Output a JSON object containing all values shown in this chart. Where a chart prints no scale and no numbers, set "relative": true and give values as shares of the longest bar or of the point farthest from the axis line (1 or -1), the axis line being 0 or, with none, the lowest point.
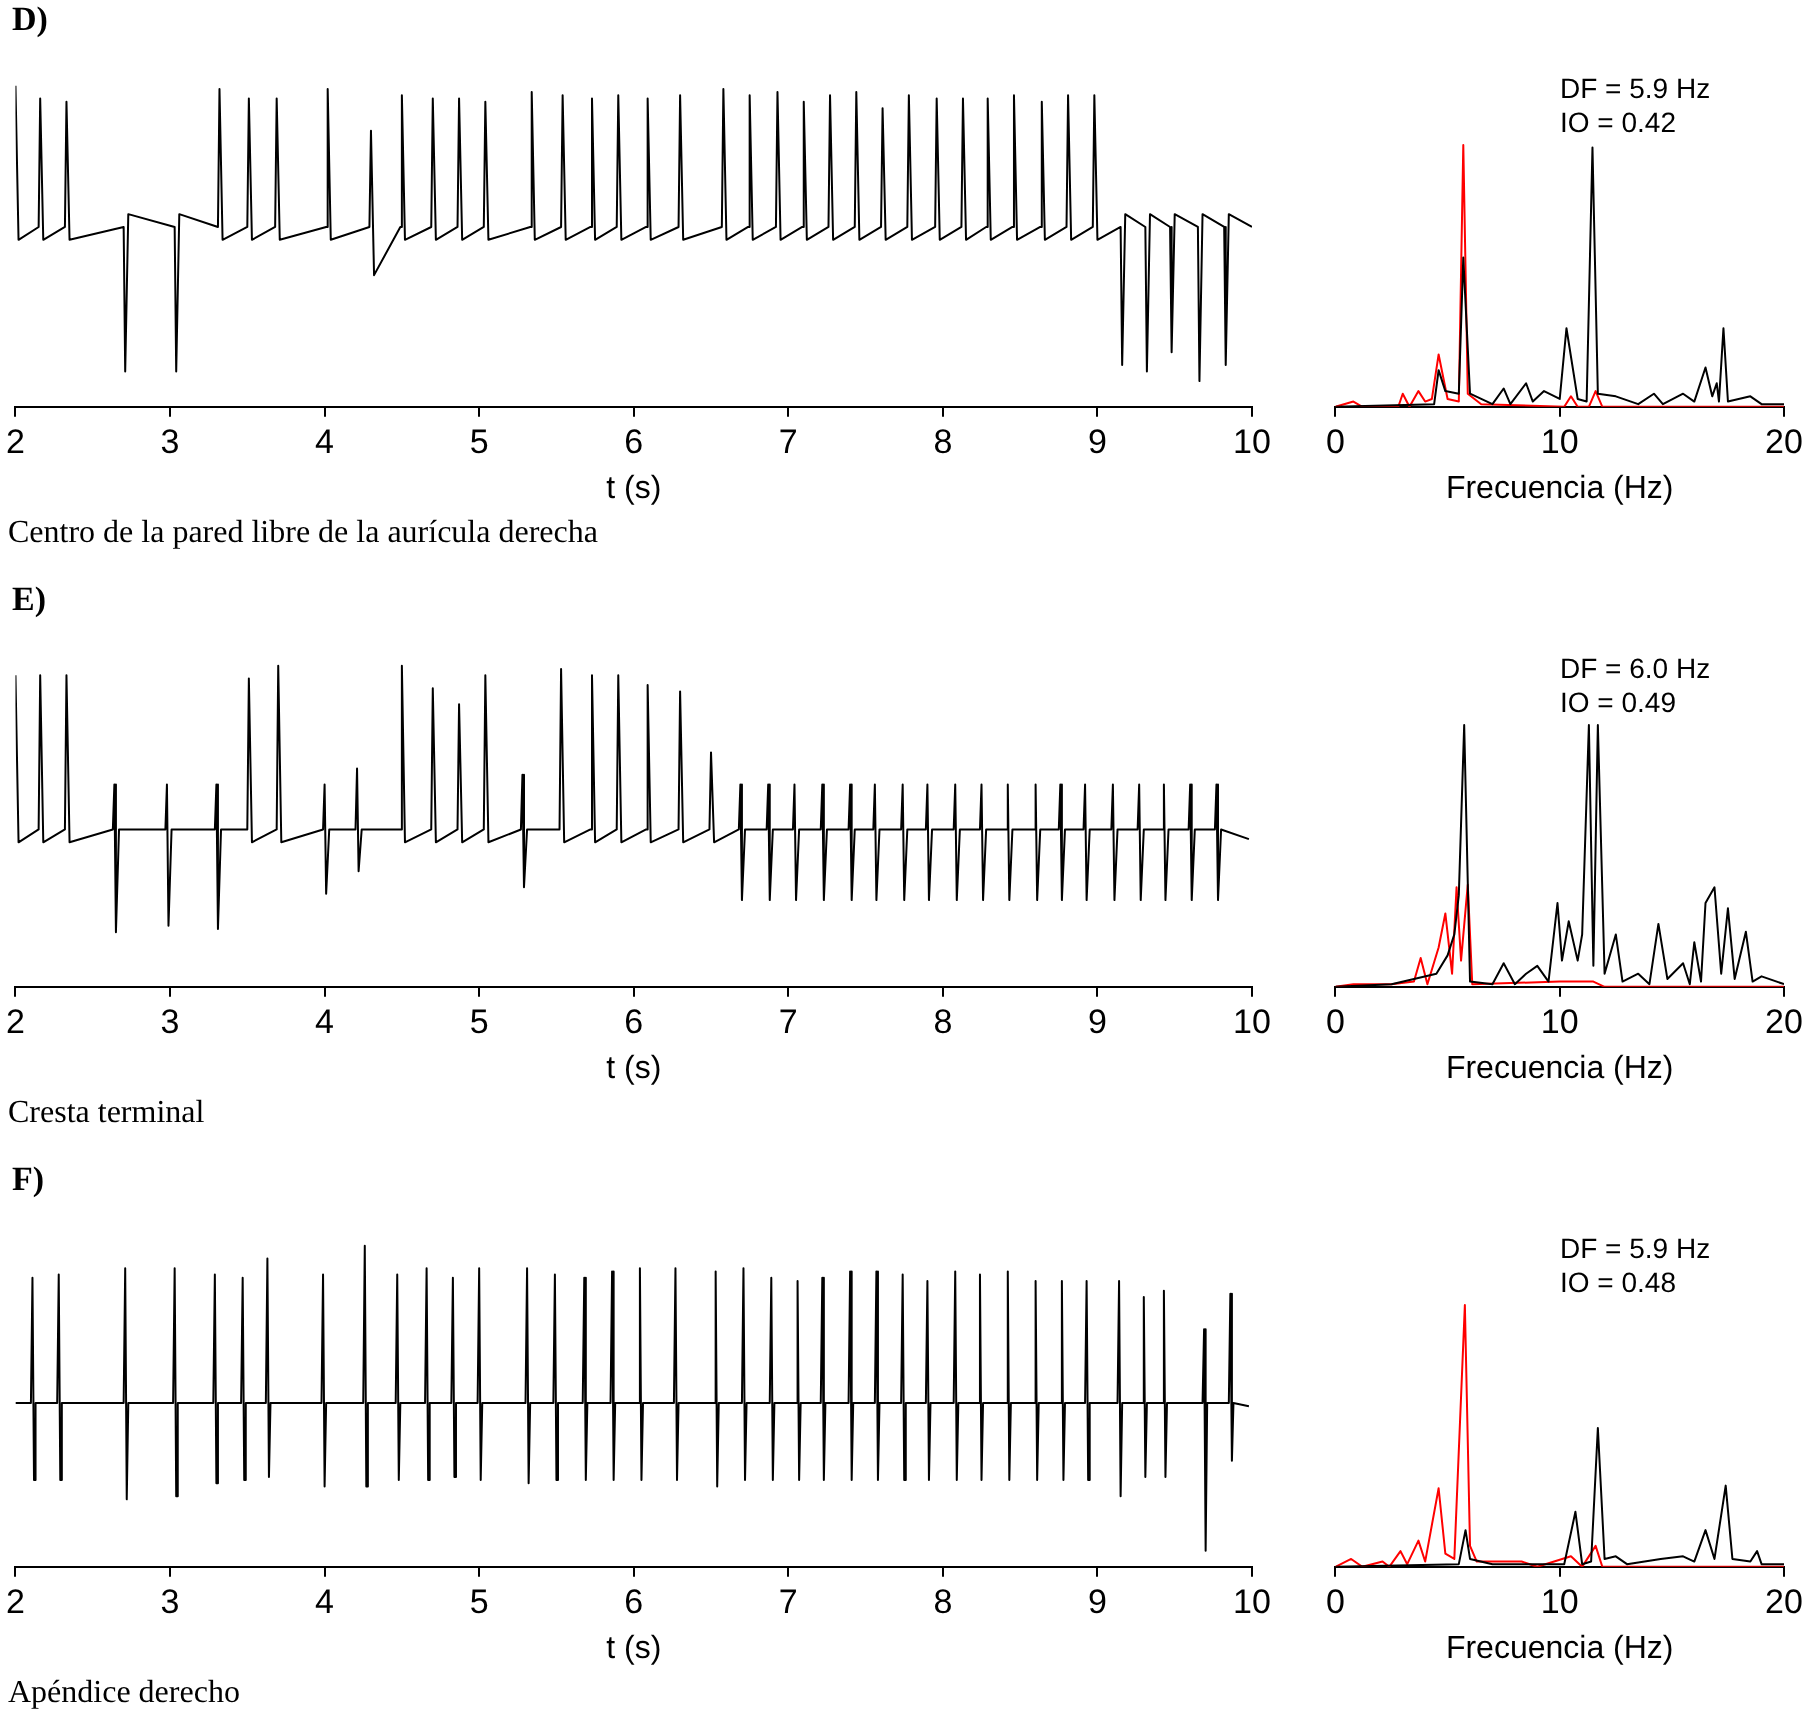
{
  "chart_data": [
    {
      "type": "line",
      "title": "D)",
      "xlabel": "t (s)",
      "relative": true,
      "xlim": [
        2,
        10
      ],
      "xticks": [
        2,
        3,
        4,
        5,
        6,
        7,
        8,
        9,
        10
      ],
      "annotations": [
        "Centro de la pared libre de la aurícula derecha"
      ],
      "series": [
        {
          "color": "#000000",
          "x": [
            2.0,
            2.02,
            2.15,
            2.16,
            2.18,
            2.32,
            2.33,
            2.35,
            2.7,
            2.71,
            2.73,
            3.03,
            3.04,
            3.06,
            3.31,
            3.32,
            3.34,
            3.5,
            3.51,
            3.53,
            3.68,
            3.69,
            3.71,
            4.01,
            4.02,
            4.04,
            4.29,
            4.3,
            4.32,
            4.49,
            4.5,
            4.52,
            4.69,
            4.7,
            4.72,
            4.86,
            4.87,
            4.89,
            5.03,
            5.04,
            5.06,
            5.33,
            5.34,
            5.36,
            5.53,
            5.54,
            5.56,
            5.72,
            5.73,
            5.75,
            5.89,
            5.9,
            5.92,
            6.08,
            6.09,
            6.11,
            6.29,
            6.3,
            6.32,
            6.57,
            6.58,
            6.6,
            6.74,
            6.75,
            6.77,
            6.92,
            6.93,
            6.95,
            7.09,
            7.1,
            7.12,
            7.26,
            7.27,
            7.29,
            7.43,
            7.44,
            7.46,
            7.6,
            7.61,
            7.63,
            7.77,
            7.78,
            7.8,
            7.95,
            7.96,
            7.98,
            8.12,
            8.13,
            8.15,
            8.28,
            8.29,
            8.31,
            8.45,
            8.46,
            8.48,
            8.63,
            8.64,
            8.66,
            8.8,
            8.81,
            8.83,
            8.97,
            8.98,
            9.0,
            9.15,
            9.16,
            9.18,
            9.31,
            9.32,
            9.34,
            9.47,
            9.48,
            9.5,
            9.65,
            9.66,
            9.68,
            9.82,
            9.83,
            9.85,
            10.0
          ],
          "values": [
            1.0,
            0.52,
            0.56,
            0.96,
            0.52,
            0.56,
            0.95,
            0.52,
            0.56,
            0.11,
            0.6,
            0.56,
            0.11,
            0.6,
            0.56,
            0.99,
            0.52,
            0.56,
            0.96,
            0.52,
            0.56,
            0.96,
            0.52,
            0.56,
            0.99,
            0.52,
            0.56,
            0.86,
            0.41,
            0.56,
            0.97,
            0.52,
            0.56,
            0.96,
            0.52,
            0.56,
            0.96,
            0.52,
            0.56,
            0.95,
            0.52,
            0.56,
            0.98,
            0.52,
            0.56,
            0.97,
            0.52,
            0.56,
            0.96,
            0.52,
            0.56,
            0.97,
            0.52,
            0.56,
            0.96,
            0.52,
            0.56,
            0.97,
            0.52,
            0.56,
            0.99,
            0.52,
            0.56,
            0.97,
            0.52,
            0.56,
            0.98,
            0.52,
            0.56,
            0.95,
            0.52,
            0.56,
            0.97,
            0.52,
            0.56,
            0.98,
            0.52,
            0.56,
            0.93,
            0.52,
            0.56,
            0.97,
            0.52,
            0.56,
            0.96,
            0.52,
            0.56,
            0.96,
            0.52,
            0.56,
            0.96,
            0.52,
            0.56,
            0.97,
            0.52,
            0.56,
            0.95,
            0.52,
            0.56,
            0.97,
            0.52,
            0.56,
            0.97,
            0.52,
            0.56,
            0.13,
            0.6,
            0.56,
            0.11,
            0.6,
            0.56,
            0.17,
            0.6,
            0.56,
            0.08,
            0.6,
            0.56,
            0.13,
            0.6,
            0.56
          ]
        }
      ]
    },
    {
      "type": "line",
      "xlabel": "Frecuencia (Hz)",
      "relative": true,
      "xlim": [
        0,
        20
      ],
      "xticks": [
        0,
        10,
        20
      ],
      "annotations": [
        "DF = 5.9 Hz",
        "IO = 0.42"
      ],
      "series": [
        {
          "color": "#000000",
          "x": [
            0,
            4.4,
            4.6,
            4.9,
            5.5,
            5.7,
            6.0,
            7.0,
            7.5,
            7.8,
            8.5,
            8.8,
            9.3,
            10.0,
            10.3,
            10.8,
            11.2,
            11.46,
            11.7,
            12.5,
            13.5,
            14.2,
            14.6,
            15.5,
            16.0,
            16.5,
            16.8,
            17.0,
            17.1,
            17.3,
            17.5,
            18.5,
            19.0,
            20
          ],
          "values": [
            0,
            0.01,
            0.14,
            0.06,
            0.05,
            0.57,
            0.05,
            0.01,
            0.07,
            0.01,
            0.09,
            0.02,
            0.06,
            0.03,
            0.3,
            0.03,
            0.02,
            0.99,
            0.05,
            0.04,
            0.01,
            0.05,
            0.01,
            0.05,
            0.02,
            0.15,
            0.04,
            0.09,
            0.02,
            0.3,
            0.02,
            0.04,
            0.01,
            0.01
          ]
        },
        {
          "color": "#ff0000",
          "x": [
            0,
            0.8,
            1.2,
            2.8,
            3.0,
            3.3,
            3.7,
            4.0,
            4.3,
            4.6,
            5.0,
            5.5,
            5.7,
            5.9,
            6.5,
            10.2,
            10.5,
            10.8,
            11.3,
            11.6,
            11.9,
            20
          ],
          "values": [
            0,
            0.02,
            0,
            0,
            0.05,
            0,
            0.06,
            0.02,
            0.03,
            0.2,
            0.03,
            0.02,
            1.0,
            0.05,
            0.01,
            0,
            0.04,
            0,
            0,
            0.06,
            0,
            0
          ]
        }
      ]
    },
    {
      "type": "line",
      "title": "E)",
      "xlabel": "t (s)",
      "relative": true,
      "xlim": [
        2,
        10
      ],
      "xticks": [
        2,
        3,
        4,
        5,
        6,
        7,
        8,
        9,
        10
      ],
      "annotations": [
        "Cresta terminal"
      ],
      "series": [
        {
          "color": "#000000",
          "x": [
            2.0,
            2.02,
            2.15,
            2.16,
            2.18,
            2.32,
            2.33,
            2.35,
            2.63,
            2.64,
            2.65,
            2.67,
            2.97,
            2.98,
            2.99,
            3.01,
            3.29,
            3.3,
            3.31,
            3.33,
            3.5,
            3.51,
            3.53,
            3.69,
            3.7,
            3.72,
            3.99,
            4.0,
            4.01,
            4.03,
            4.2,
            4.21,
            4.22,
            4.24,
            4.49,
            4.5,
            4.52,
            4.69,
            4.7,
            4.72,
            4.86,
            4.87,
            4.89,
            5.03,
            5.04,
            5.06,
            5.27,
            5.28,
            5.29,
            5.31,
            5.52,
            5.53,
            5.55,
            5.72,
            5.73,
            5.75,
            5.89,
            5.9,
            5.92,
            6.08,
            6.09,
            6.11,
            6.29,
            6.3,
            6.32,
            6.49,
            6.5,
            6.52,
            6.68,
            6.69,
            6.7,
            6.72,
            6.86,
            6.87,
            6.88,
            6.9,
            7.03,
            7.04,
            7.05,
            7.07,
            7.21,
            7.22,
            7.23,
            7.25,
            7.39,
            7.4,
            7.41,
            7.43,
            7.55,
            7.56,
            7.57,
            7.59,
            7.73,
            7.74,
            7.75,
            7.77,
            7.89,
            7.9,
            7.91,
            7.93,
            8.07,
            8.08,
            8.09,
            8.11,
            8.24,
            8.25,
            8.26,
            8.28,
            8.41,
            8.42,
            8.43,
            8.45,
            8.59,
            8.6,
            8.61,
            8.63,
            8.75,
            8.76,
            8.77,
            8.79,
            8.91,
            8.92,
            8.93,
            8.95,
            9.09,
            9.1,
            9.11,
            9.13,
            9.26,
            9.27,
            9.28,
            9.3,
            9.42,
            9.43,
            9.44,
            9.46,
            9.59,
            9.6,
            9.61,
            9.63,
            9.76,
            9.77,
            9.78,
            9.8,
            9.98
          ],
          "values": [
            0.97,
            0.45,
            0.49,
            0.97,
            0.45,
            0.49,
            0.97,
            0.45,
            0.49,
            0.63,
            0.17,
            0.49,
            0.49,
            0.63,
            0.19,
            0.49,
            0.49,
            0.63,
            0.18,
            0.49,
            0.49,
            0.96,
            0.45,
            0.49,
            1.0,
            0.45,
            0.49,
            0.63,
            0.29,
            0.49,
            0.49,
            0.68,
            0.36,
            0.49,
            0.49,
            1.0,
            0.45,
            0.49,
            0.93,
            0.45,
            0.49,
            0.88,
            0.45,
            0.49,
            0.97,
            0.45,
            0.49,
            0.66,
            0.31,
            0.49,
            0.49,
            0.99,
            0.45,
            0.49,
            0.97,
            0.45,
            0.49,
            0.97,
            0.45,
            0.49,
            0.94,
            0.45,
            0.49,
            0.92,
            0.45,
            0.49,
            0.73,
            0.45,
            0.49,
            0.63,
            0.27,
            0.49,
            0.49,
            0.63,
            0.27,
            0.49,
            0.49,
            0.63,
            0.27,
            0.49,
            0.49,
            0.63,
            0.27,
            0.49,
            0.49,
            0.63,
            0.27,
            0.49,
            0.49,
            0.63,
            0.27,
            0.49,
            0.49,
            0.63,
            0.27,
            0.49,
            0.49,
            0.63,
            0.27,
            0.49,
            0.49,
            0.63,
            0.27,
            0.49,
            0.49,
            0.63,
            0.27,
            0.49,
            0.49,
            0.63,
            0.27,
            0.49,
            0.49,
            0.63,
            0.27,
            0.49,
            0.49,
            0.63,
            0.27,
            0.49,
            0.49,
            0.63,
            0.27,
            0.49,
            0.49,
            0.63,
            0.27,
            0.49,
            0.49,
            0.63,
            0.27,
            0.49,
            0.49,
            0.63,
            0.27,
            0.49,
            0.49,
            0.63,
            0.27,
            0.49,
            0.49,
            0.63,
            0.27,
            0.49,
            0.46
          ]
        }
      ]
    },
    {
      "type": "line",
      "xlabel": "Frecuencia (Hz)",
      "relative": true,
      "xlim": [
        0,
        20
      ],
      "xticks": [
        0,
        10,
        20
      ],
      "annotations": [
        "DF = 6.0 Hz",
        "IO = 0.49"
      ],
      "series": [
        {
          "color": "#000000",
          "x": [
            0,
            2.5,
            4.5,
            5.0,
            5.3,
            5.5,
            5.74,
            6.0,
            7.0,
            7.5,
            8.0,
            8.5,
            9.0,
            9.5,
            9.9,
            10.1,
            10.4,
            10.8,
            11.0,
            11.3,
            11.5,
            11.7,
            12.0,
            12.5,
            12.8,
            13.5,
            14.0,
            14.4,
            14.8,
            15.5,
            15.8,
            16.0,
            16.3,
            16.5,
            16.9,
            17.2,
            17.5,
            17.8,
            18.3,
            18.6,
            19.0,
            20
          ],
          "values": [
            0,
            0.01,
            0.05,
            0.12,
            0.2,
            0.35,
            1.0,
            0.02,
            0.01,
            0.09,
            0.01,
            0.05,
            0.08,
            0.02,
            0.32,
            0.1,
            0.25,
            0.1,
            0.2,
            1.0,
            0.08,
            1.0,
            0.05,
            0.2,
            0.02,
            0.05,
            0.01,
            0.24,
            0.03,
            0.09,
            0.01,
            0.17,
            0.02,
            0.32,
            0.38,
            0.05,
            0.3,
            0.03,
            0.21,
            0.02,
            0.04,
            0.01
          ]
        },
        {
          "color": "#ff0000",
          "x": [
            0,
            0.8,
            2.5,
            3.5,
            3.8,
            4.1,
            4.6,
            4.9,
            5.2,
            5.4,
            5.6,
            5.9,
            6.1,
            10.0,
            10.5,
            11.5,
            12.0,
            20
          ],
          "values": [
            0,
            0.01,
            0.01,
            0.02,
            0.11,
            0.01,
            0.15,
            0.28,
            0.05,
            0.38,
            0.1,
            0.39,
            0.01,
            0.02,
            0.02,
            0.02,
            0,
            0
          ]
        }
      ]
    },
    {
      "type": "line",
      "title": "F)",
      "xlabel": "t (s)",
      "relative": true,
      "xlim": [
        2,
        10
      ],
      "xticks": [
        2,
        3,
        4,
        5,
        6,
        7,
        8,
        9,
        10
      ],
      "annotations": [
        "Apéndice derecho"
      ],
      "series": [
        {
          "color": "#000000",
          "x": [
            2.0,
            2.1,
            2.11,
            2.12,
            2.13,
            2.27,
            2.28,
            2.29,
            2.3,
            2.7,
            2.71,
            2.72,
            2.73,
            3.02,
            3.03,
            3.04,
            3.05,
            3.28,
            3.29,
            3.3,
            3.31,
            3.46,
            3.47,
            3.48,
            3.49,
            3.62,
            3.63,
            3.64,
            3.65,
            3.98,
            3.99,
            4.0,
            4.01,
            4.25,
            4.26,
            4.27,
            4.28,
            4.46,
            4.47,
            4.48,
            4.49,
            4.65,
            4.66,
            4.67,
            4.68,
            4.82,
            4.83,
            4.84,
            4.85,
            4.99,
            5.0,
            5.01,
            5.02,
            5.3,
            5.31,
            5.32,
            5.33,
            5.48,
            5.49,
            5.5,
            5.51,
            5.67,
            5.68,
            5.69,
            5.7,
            5.85,
            5.86,
            5.87,
            5.88,
            6.03,
            6.04,
            6.05,
            6.06,
            6.26,
            6.27,
            6.28,
            6.29,
            6.52,
            6.53,
            6.54,
            6.55,
            6.7,
            6.71,
            6.72,
            6.73,
            6.88,
            6.89,
            6.9,
            6.91,
            7.05,
            7.06,
            7.07,
            7.08,
            7.21,
            7.22,
            7.23,
            7.24,
            7.39,
            7.4,
            7.41,
            7.42,
            7.56,
            7.57,
            7.58,
            7.59,
            7.73,
            7.74,
            7.75,
            7.76,
            7.89,
            7.9,
            7.91,
            7.92,
            8.07,
            8.08,
            8.09,
            8.1,
            8.23,
            8.24,
            8.25,
            8.26,
            8.41,
            8.42,
            8.43,
            8.44,
            8.59,
            8.6,
            8.61,
            8.62,
            8.76,
            8.77,
            8.78,
            8.79,
            8.92,
            8.93,
            8.94,
            8.95,
            9.13,
            9.14,
            9.15,
            9.16,
            9.29,
            9.3,
            9.31,
            9.32,
            9.42,
            9.43,
            9.44,
            9.45,
            9.68,
            9.69,
            9.7,
            9.71,
            9.85,
            9.86,
            9.87,
            9.88,
            9.98
          ],
          "values": [
            0.51,
            0.51,
            0.9,
            0.27,
            0.51,
            0.51,
            0.91,
            0.27,
            0.51,
            0.51,
            0.93,
            0.21,
            0.51,
            0.51,
            0.93,
            0.22,
            0.51,
            0.51,
            0.91,
            0.26,
            0.51,
            0.51,
            0.9,
            0.27,
            0.51,
            0.51,
            0.96,
            0.28,
            0.51,
            0.51,
            0.91,
            0.25,
            0.51,
            0.51,
            1.0,
            0.25,
            0.51,
            0.51,
            0.91,
            0.27,
            0.51,
            0.51,
            0.93,
            0.27,
            0.51,
            0.51,
            0.9,
            0.28,
            0.51,
            0.51,
            0.93,
            0.27,
            0.51,
            0.51,
            0.93,
            0.26,
            0.51,
            0.51,
            0.91,
            0.27,
            0.51,
            0.51,
            0.9,
            0.27,
            0.51,
            0.51,
            0.92,
            0.27,
            0.51,
            0.51,
            0.93,
            0.27,
            0.51,
            0.51,
            0.93,
            0.27,
            0.51,
            0.51,
            0.92,
            0.25,
            0.51,
            0.51,
            0.93,
            0.27,
            0.51,
            0.51,
            0.9,
            0.27,
            0.51,
            0.51,
            0.89,
            0.27,
            0.51,
            0.51,
            0.9,
            0.27,
            0.51,
            0.51,
            0.92,
            0.27,
            0.51,
            0.51,
            0.92,
            0.27,
            0.51,
            0.51,
            0.91,
            0.27,
            0.51,
            0.51,
            0.89,
            0.27,
            0.51,
            0.51,
            0.92,
            0.27,
            0.51,
            0.51,
            0.91,
            0.27,
            0.51,
            0.51,
            0.92,
            0.27,
            0.51,
            0.51,
            0.89,
            0.27,
            0.51,
            0.51,
            0.89,
            0.27,
            0.51,
            0.51,
            0.89,
            0.27,
            0.51,
            0.51,
            0.89,
            0.22,
            0.51,
            0.51,
            0.84,
            0.28,
            0.51,
            0.51,
            0.86,
            0.28,
            0.51,
            0.51,
            0.74,
            0.05,
            0.51,
            0.51,
            0.85,
            0.33,
            0.51,
            0.5
          ]
        }
      ]
    },
    {
      "type": "line",
      "xlabel": "Frecuencia (Hz)",
      "relative": true,
      "xlim": [
        0,
        20
      ],
      "xticks": [
        0,
        10,
        20
      ],
      "annotations": [
        "DF = 5.9 Hz",
        "IO = 0.48"
      ],
      "series": [
        {
          "color": "#000000",
          "x": [
            0,
            5.5,
            5.8,
            6.0,
            7.0,
            10.2,
            10.7,
            11.0,
            11.4,
            11.7,
            12.0,
            12.5,
            13.0,
            14.5,
            15.5,
            16.0,
            16.5,
            16.9,
            17.4,
            17.7,
            18.5,
            18.8,
            19.0,
            20
          ],
          "values": [
            0,
            0.01,
            0.14,
            0.03,
            0.01,
            0.01,
            0.21,
            0.01,
            0.02,
            0.53,
            0.03,
            0.04,
            0.01,
            0.03,
            0.04,
            0.02,
            0.14,
            0.03,
            0.31,
            0.03,
            0.02,
            0.06,
            0.01,
            0.01
          ]
        },
        {
          "color": "#ff0000",
          "x": [
            0,
            0.7,
            1.2,
            2.1,
            2.4,
            2.9,
            3.2,
            3.7,
            4.0,
            4.6,
            4.9,
            5.3,
            5.77,
            6.0,
            6.3,
            7.0,
            8.3,
            9.0,
            10.5,
            11.0,
            11.6,
            11.9,
            20
          ],
          "values": [
            0,
            0.03,
            0,
            0.02,
            0,
            0.06,
            0.01,
            0.1,
            0.02,
            0.3,
            0.05,
            0.03,
            1.0,
            0.08,
            0.02,
            0.02,
            0.02,
            0,
            0.04,
            0,
            0.08,
            0,
            0
          ]
        }
      ]
    }
  ]
}
